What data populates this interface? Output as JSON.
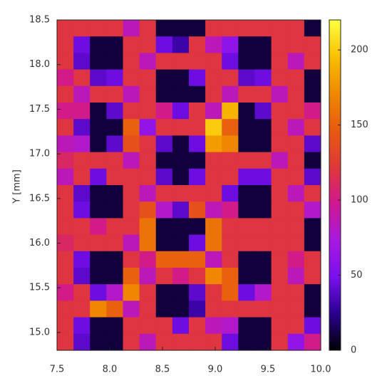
{
  "chart_data": {
    "type": "heatmap",
    "ylabel": "Y [mm]",
    "xlim": [
      7.5,
      10.0
    ],
    "xticks": [
      7.5,
      {
        "value": 8,
        "label": "8.0"
      },
      8.5,
      {
        "value": 9,
        "label": "9.0"
      },
      9.5,
      {
        "value": 10,
        "label": "10.0"
      }
    ],
    "ylim": [
      14.8,
      18.5
    ],
    "yticks": [
      {
        "value": 15,
        "label": "15.0"
      },
      15.5,
      {
        "value": 16,
        "label": "16.0"
      },
      16.5,
      {
        "value": 17,
        "label": "17.0"
      },
      17.5,
      {
        "value": 18,
        "label": "18.0"
      },
      18.5
    ],
    "zlim": [
      0,
      220
    ],
    "zticks": [
      0,
      50,
      100,
      150,
      200
    ],
    "colorscale": [
      "#000000",
      "#2a0090",
      "#7a10f0",
      "#a818e0",
      "#d01890",
      "#e03838",
      "#e85a10",
      "#f08800",
      "#f8c000",
      "#ffff40"
    ],
    "z": [
      [
        120,
        120,
        120,
        120,
        85,
        120,
        10,
        10,
        10,
        120,
        120,
        120,
        120,
        120,
        120,
        10
      ],
      [
        120,
        45,
        10,
        10,
        120,
        120,
        45,
        30,
        120,
        85,
        60,
        10,
        10,
        120,
        120,
        120
      ],
      [
        120,
        40,
        10,
        10,
        120,
        85,
        120,
        120,
        120,
        120,
        45,
        10,
        10,
        120,
        85,
        120
      ],
      [
        100,
        120,
        40,
        45,
        120,
        120,
        10,
        10,
        45,
        120,
        120,
        40,
        45,
        120,
        120,
        10
      ],
      [
        120,
        85,
        120,
        120,
        85,
        120,
        10,
        10,
        10,
        120,
        85,
        120,
        120,
        85,
        120,
        10
      ],
      [
        100,
        100,
        10,
        40,
        120,
        120,
        100,
        45,
        120,
        85,
        190,
        10,
        40,
        120,
        120,
        100
      ],
      [
        120,
        40,
        10,
        10,
        150,
        62,
        120,
        120,
        120,
        200,
        150,
        10,
        10,
        120,
        85,
        120
      ],
      [
        85,
        80,
        10,
        40,
        140,
        120,
        40,
        10,
        45,
        180,
        170,
        10,
        10,
        120,
        120,
        40
      ],
      [
        110,
        120,
        120,
        120,
        85,
        120,
        10,
        10,
        10,
        120,
        120,
        120,
        120,
        85,
        120,
        10
      ],
      [
        85,
        120,
        45,
        120,
        120,
        120,
        40,
        10,
        45,
        120,
        120,
        45,
        45,
        120,
        120,
        40
      ],
      [
        120,
        40,
        10,
        10,
        120,
        85,
        120,
        120,
        120,
        120,
        45,
        10,
        10,
        120,
        85,
        120
      ],
      [
        120,
        45,
        10,
        10,
        120,
        140,
        80,
        40,
        140,
        85,
        100,
        10,
        10,
        120,
        120,
        80
      ],
      [
        120,
        120,
        100,
        120,
        120,
        160,
        10,
        10,
        10,
        160,
        120,
        120,
        120,
        120,
        120,
        10
      ],
      [
        110,
        120,
        120,
        120,
        85,
        160,
        10,
        10,
        45,
        160,
        120,
        120,
        120,
        120,
        120,
        10
      ],
      [
        120,
        45,
        10,
        10,
        120,
        100,
        150,
        150,
        150,
        85,
        120,
        10,
        10,
        120,
        100,
        120
      ],
      [
        120,
        40,
        10,
        10,
        150,
        85,
        120,
        100,
        120,
        170,
        150,
        10,
        10,
        120,
        85,
        120
      ],
      [
        100,
        120,
        45,
        80,
        170,
        120,
        10,
        10,
        40,
        120,
        150,
        45,
        80,
        120,
        120,
        10
      ],
      [
        120,
        120,
        170,
        150,
        85,
        120,
        10,
        10,
        30,
        120,
        120,
        120,
        120,
        120,
        120,
        10
      ],
      [
        120,
        45,
        10,
        10,
        120,
        120,
        120,
        45,
        120,
        85,
        80,
        10,
        10,
        120,
        120,
        45
      ],
      [
        120,
        40,
        10,
        10,
        120,
        85,
        120,
        120,
        120,
        120,
        45,
        10,
        10,
        120,
        62,
        100
      ]
    ]
  }
}
